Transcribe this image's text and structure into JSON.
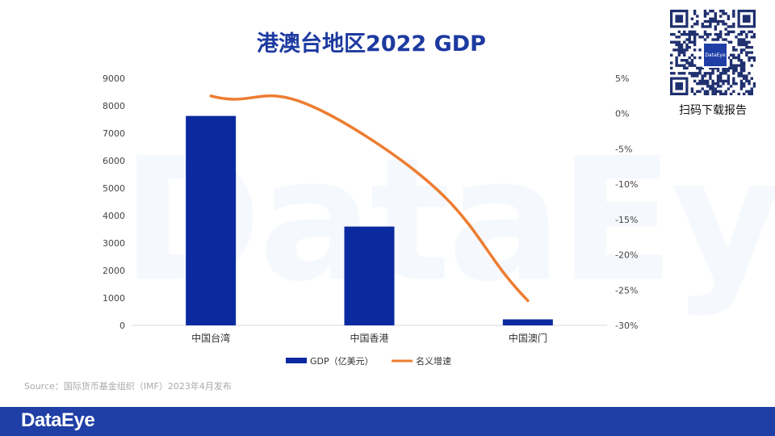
{
  "watermark": "DataEye",
  "title": "港澳台地区2022 GDP",
  "qr": {
    "caption": "扫码下载报告",
    "logo_text": "DataEye"
  },
  "source": "Source：国际货币基金组织（IMF）2023年4月发布",
  "footer": {
    "logo": "DataEye",
    "bar_color": "#1f3fa6"
  },
  "colors": {
    "bar": "#0b2aa0",
    "line": "#ed7d31",
    "title": "#1d3aa0"
  },
  "chart_data": {
    "type": "bar",
    "categories": [
      "中国台湾",
      "中国香港",
      "中国澳门"
    ],
    "series": [
      {
        "name": "GDP（亿美元）",
        "kind": "bar",
        "axis": "left",
        "values": [
          7630,
          3600,
          220
        ]
      },
      {
        "name": "名义增速",
        "kind": "line",
        "axis": "right",
        "values": [
          2.5,
          -3.5,
          -26.5
        ]
      }
    ],
    "y_left": {
      "ylim": [
        0,
        9000
      ],
      "ticks": [
        0,
        1000,
        2000,
        3000,
        4000,
        5000,
        6000,
        7000,
        8000,
        9000
      ]
    },
    "y_right": {
      "ylim": [
        -30,
        5
      ],
      "ticks": [
        "5%",
        "0%",
        "-5%",
        "-10%",
        "-15%",
        "-20%",
        "-25%",
        "-30%"
      ],
      "tick_values": [
        5,
        0,
        -5,
        -10,
        -15,
        -20,
        -25,
        -30
      ]
    },
    "legend_position": "bottom",
    "grid": false
  }
}
